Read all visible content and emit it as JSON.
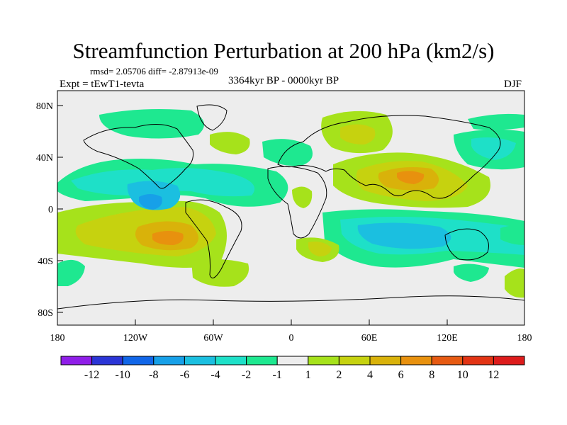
{
  "title": "Streamfunction Perturbation at 200 hPa (km2/s)",
  "stats": "rmsd= 2.05706 diff= -2.87913e-09",
  "expt": "Expt = tEwT1-tevta",
  "period": "3364kyr BP - 0000kyr BP",
  "season": "DJF",
  "y_axis": {
    "ticks": [
      "80N",
      "40N",
      "0",
      "40S",
      "80S"
    ]
  },
  "x_axis": {
    "ticks": [
      "180",
      "120W",
      "60W",
      "0",
      "60E",
      "120E",
      "180"
    ]
  },
  "colorbar": {
    "labels": [
      "-12",
      "-10",
      "-8",
      "-6",
      "-4",
      "-2",
      "-1",
      "1",
      "2",
      "4",
      "6",
      "8",
      "10",
      "12"
    ],
    "colors": [
      "#8f1ee8",
      "#2b35d6",
      "#1166e8",
      "#17a0e8",
      "#1bbfe0",
      "#1ee0c8",
      "#1ee890",
      "#ededed",
      "#a6e21b",
      "#c6d20f",
      "#d9b20a",
      "#e8910e",
      "#e65a12",
      "#e23414",
      "#dd1c1c"
    ]
  },
  "field": {
    "colors": {
      "neutral": "#ededed",
      "neg1": "#1ee890",
      "neg2": "#1ee0c8",
      "neg4": "#1bbfe0",
      "neg6": "#17a0e8",
      "pos1": "#a6e21b",
      "pos2": "#c6d20f",
      "pos4": "#d9b20a",
      "pos6": "#e8910e"
    }
  }
}
